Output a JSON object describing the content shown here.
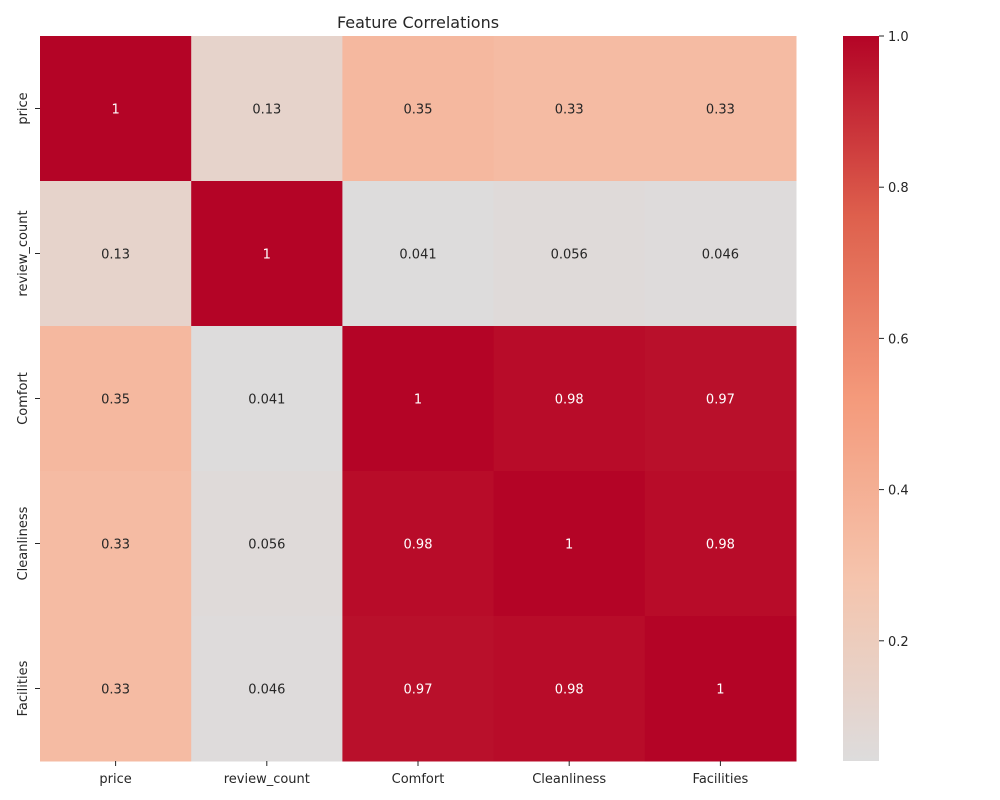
{
  "chart_data": {
    "type": "heatmap",
    "title": "Feature Correlations",
    "xlabel": "",
    "ylabel": "",
    "x_categories": [
      "price",
      "review_count",
      "Comfort",
      "Cleanliness",
      "Facilities"
    ],
    "y_categories": [
      "price",
      "review_count",
      "Comfort",
      "Cleanliness",
      "Facilities"
    ],
    "values": [
      [
        1,
        0.13,
        0.35,
        0.33,
        0.33
      ],
      [
        0.13,
        1,
        0.041,
        0.056,
        0.046
      ],
      [
        0.35,
        0.041,
        1,
        0.98,
        0.97
      ],
      [
        0.33,
        0.056,
        0.98,
        1,
        0.98
      ],
      [
        0.33,
        0.046,
        0.97,
        0.98,
        1
      ]
    ],
    "value_labels": [
      [
        "1",
        "0.13",
        "0.35",
        "0.33",
        "0.33"
      ],
      [
        "0.13",
        "1",
        "0.041",
        "0.056",
        "0.046"
      ],
      [
        "0.35",
        "0.041",
        "1",
        "0.98",
        "0.97"
      ],
      [
        "0.33",
        "0.056",
        "0.98",
        "1",
        "0.98"
      ],
      [
        "0.33",
        "0.046",
        "0.97",
        "0.98",
        "1"
      ]
    ],
    "colormap": "coolwarm",
    "color_range": [
      0.041,
      1
    ],
    "colorbar": {
      "ticks": [
        0.2,
        0.4,
        0.6,
        0.8,
        1.0
      ],
      "tick_labels": [
        "0.2",
        "0.4",
        "0.6",
        "0.8",
        "1.0"
      ],
      "placement": "right"
    },
    "grid": false,
    "colors": {
      "low": "#dddcdc",
      "high": "#b40426"
    }
  }
}
